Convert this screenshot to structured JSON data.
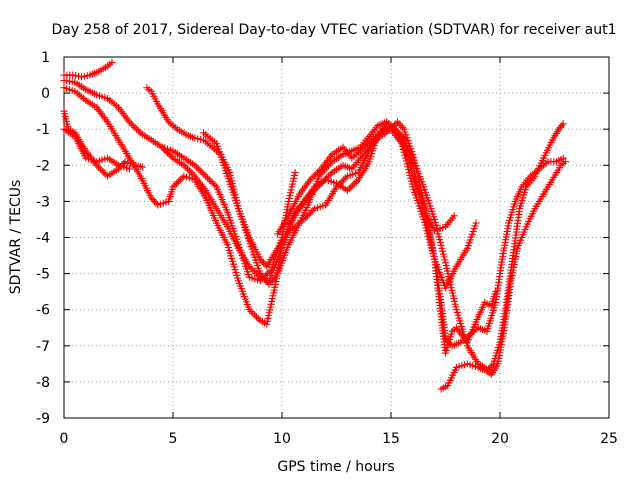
{
  "chart_data": {
    "type": "scatter",
    "title": "Day 258 of 2017, Sidereal Day-to-day VTEC variation (SDTVAR) for receiver aut1",
    "xlabel": "GPS time / hours",
    "ylabel": "SDTVAR / TECUs",
    "xlim": [
      0,
      25
    ],
    "ylim": [
      -9,
      1
    ],
    "xticks": [
      0,
      5,
      10,
      15,
      20,
      25
    ],
    "yticks": [
      -9,
      -8,
      -7,
      -6,
      -5,
      -4,
      -3,
      -2,
      -1,
      0,
      1
    ],
    "grid": true,
    "marker": "plus",
    "color": "#ff0000",
    "series": [
      {
        "name": "trace-1",
        "points": [
          [
            0.0,
            0.5
          ],
          [
            0.4,
            0.5
          ],
          [
            0.8,
            0.45
          ],
          [
            1.2,
            0.5
          ],
          [
            1.6,
            0.6
          ],
          [
            2.0,
            0.75
          ],
          [
            2.2,
            0.85
          ]
        ]
      },
      {
        "name": "trace-2",
        "points": [
          [
            0.0,
            -0.5
          ],
          [
            0.2,
            -1.0
          ],
          [
            0.5,
            -1.1
          ],
          [
            1.0,
            -1.6
          ],
          [
            1.5,
            -2.0
          ],
          [
            2.0,
            -2.3
          ],
          [
            2.5,
            -2.1
          ],
          [
            2.8,
            -1.9
          ],
          [
            3.3,
            -2.0
          ],
          [
            3.6,
            -2.05
          ]
        ]
      },
      {
        "name": "trace-3",
        "points": [
          [
            0.0,
            -1.0
          ],
          [
            0.5,
            -1.2
          ],
          [
            1.0,
            -1.8
          ],
          [
            1.5,
            -1.9
          ],
          [
            2.0,
            -1.8
          ],
          [
            2.5,
            -2.0
          ],
          [
            3.0,
            -2.1
          ]
        ]
      },
      {
        "name": "trace-4",
        "points": [
          [
            0.0,
            0.35
          ],
          [
            0.5,
            0.3
          ],
          [
            1.0,
            0.1
          ],
          [
            1.5,
            -0.05
          ],
          [
            2.0,
            -0.15
          ],
          [
            2.5,
            -0.4
          ],
          [
            3.0,
            -0.8
          ],
          [
            3.5,
            -1.1
          ],
          [
            4.0,
            -1.3
          ],
          [
            4.5,
            -1.5
          ],
          [
            5.0,
            -1.6
          ],
          [
            5.5,
            -1.8
          ],
          [
            6.0,
            -2.0
          ],
          [
            6.5,
            -2.3
          ],
          [
            7.0,
            -2.6
          ],
          [
            7.5,
            -3.3
          ],
          [
            8.0,
            -4.2
          ],
          [
            8.5,
            -5.1
          ],
          [
            9.0,
            -5.2
          ],
          [
            9.5,
            -4.9
          ],
          [
            10.0,
            -4.0
          ],
          [
            10.3,
            -3.0
          ],
          [
            10.6,
            -2.2
          ]
        ]
      },
      {
        "name": "trace-5",
        "points": [
          [
            0.0,
            0.15
          ],
          [
            0.5,
            0.05
          ],
          [
            1.0,
            -0.2
          ],
          [
            1.5,
            -0.4
          ],
          [
            2.0,
            -0.8
          ],
          [
            2.5,
            -1.3
          ],
          [
            3.0,
            -1.8
          ],
          [
            3.5,
            -2.3
          ],
          [
            4.0,
            -2.9
          ],
          [
            4.3,
            -3.1
          ],
          [
            4.8,
            -3.0
          ],
          [
            5.0,
            -2.6
          ],
          [
            5.5,
            -2.3
          ],
          [
            6.0,
            -2.4
          ],
          [
            6.5,
            -2.9
          ],
          [
            7.0,
            -3.6
          ],
          [
            7.5,
            -4.2
          ],
          [
            8.0,
            -5.2
          ],
          [
            8.5,
            -6.0
          ],
          [
            9.0,
            -6.3
          ],
          [
            9.3,
            -6.4
          ],
          [
            9.7,
            -5.3
          ],
          [
            10.0,
            -4.2
          ],
          [
            10.5,
            -3.4
          ],
          [
            11.0,
            -3.0
          ],
          [
            11.5,
            -2.6
          ],
          [
            12.0,
            -2.4
          ],
          [
            12.5,
            -2.5
          ],
          [
            13.0,
            -2.7
          ],
          [
            13.5,
            -2.4
          ],
          [
            14.0,
            -1.9
          ],
          [
            14.3,
            -1.3
          ],
          [
            14.8,
            -0.8
          ],
          [
            15.2,
            -1.0
          ],
          [
            15.5,
            -1.4
          ],
          [
            16.0,
            -2.0
          ],
          [
            16.3,
            -2.8
          ],
          [
            16.7,
            -3.7
          ],
          [
            17.0,
            -4.6
          ],
          [
            17.3,
            -6.2
          ],
          [
            17.5,
            -7.2
          ],
          [
            17.8,
            -6.6
          ],
          [
            18.0,
            -6.5
          ],
          [
            18.5,
            -6.9
          ],
          [
            19.0,
            -6.2
          ],
          [
            19.3,
            -5.8
          ],
          [
            19.6,
            -5.9
          ],
          [
            19.8,
            -5.5
          ]
        ]
      },
      {
        "name": "trace-6",
        "points": [
          [
            3.8,
            0.15
          ],
          [
            4.0,
            0.05
          ],
          [
            4.3,
            -0.3
          ],
          [
            4.8,
            -0.8
          ],
          [
            5.2,
            -1.0
          ],
          [
            5.6,
            -1.15
          ],
          [
            6.0,
            -1.25
          ],
          [
            6.4,
            -1.3
          ],
          [
            6.8,
            -1.5
          ],
          [
            7.2,
            -1.7
          ],
          [
            7.6,
            -2.2
          ],
          [
            8.0,
            -3.2
          ],
          [
            8.5,
            -4.0
          ],
          [
            9.0,
            -4.6
          ],
          [
            9.3,
            -4.8
          ],
          [
            9.8,
            -4.3
          ],
          [
            10.4,
            -3.8
          ],
          [
            11.0,
            -3.5
          ],
          [
            11.5,
            -3.2
          ],
          [
            12.0,
            -3.1
          ],
          [
            12.5,
            -2.6
          ],
          [
            13.0,
            -2.3
          ],
          [
            13.5,
            -2.2
          ],
          [
            14.0,
            -1.6
          ],
          [
            14.5,
            -1.1
          ],
          [
            15.0,
            -0.9
          ],
          [
            15.5,
            -1.2
          ],
          [
            16.0,
            -1.8
          ],
          [
            16.5,
            -2.6
          ],
          [
            17.0,
            -3.5
          ],
          [
            17.5,
            -4.7
          ],
          [
            18.0,
            -6.0
          ],
          [
            18.5,
            -7.0
          ],
          [
            19.0,
            -7.5
          ],
          [
            19.3,
            -7.6
          ],
          [
            19.6,
            -7.8
          ],
          [
            19.9,
            -7.5
          ],
          [
            20.2,
            -6.5
          ],
          [
            20.5,
            -5.2
          ],
          [
            20.8,
            -4.3
          ],
          [
            21.2,
            -3.7
          ],
          [
            21.6,
            -3.2
          ],
          [
            22.0,
            -2.8
          ],
          [
            22.4,
            -2.4
          ],
          [
            22.8,
            -2.0
          ],
          [
            23.0,
            -1.9
          ]
        ]
      },
      {
        "name": "trace-7",
        "points": [
          [
            4.5,
            -1.5
          ],
          [
            5.0,
            -1.8
          ],
          [
            5.5,
            -2.0
          ],
          [
            6.0,
            -2.3
          ],
          [
            6.5,
            -2.7
          ],
          [
            7.0,
            -3.2
          ],
          [
            7.5,
            -3.7
          ],
          [
            8.0,
            -4.3
          ],
          [
            8.5,
            -4.8
          ],
          [
            9.0,
            -5.1
          ],
          [
            9.4,
            -5.2
          ],
          [
            9.8,
            -4.6
          ],
          [
            10.3,
            -3.7
          ],
          [
            10.8,
            -3.2
          ],
          [
            11.3,
            -2.8
          ],
          [
            11.8,
            -2.5
          ],
          [
            12.3,
            -2.2
          ],
          [
            12.8,
            -2.0
          ],
          [
            13.2,
            -2.1
          ],
          [
            13.6,
            -1.8
          ],
          [
            14.0,
            -1.5
          ],
          [
            14.5,
            -1.2
          ],
          [
            15.0,
            -1.0
          ],
          [
            15.5,
            -1.4
          ],
          [
            16.0,
            -2.6
          ],
          [
            16.5,
            -3.5
          ],
          [
            17.0,
            -4.6
          ],
          [
            17.3,
            -5.8
          ],
          [
            17.5,
            -6.8
          ],
          [
            17.8,
            -7.0
          ],
          [
            18.2,
            -6.9
          ],
          [
            18.6,
            -6.7
          ],
          [
            19.0,
            -6.5
          ],
          [
            19.4,
            -6.6
          ],
          [
            19.8,
            -5.8
          ],
          [
            20.1,
            -4.6
          ],
          [
            20.4,
            -3.6
          ],
          [
            20.7,
            -3.0
          ],
          [
            21.0,
            -2.6
          ],
          [
            21.4,
            -2.3
          ],
          [
            21.8,
            -2.1
          ],
          [
            22.2,
            -1.9
          ],
          [
            22.6,
            -1.9
          ],
          [
            22.9,
            -1.8
          ]
        ]
      },
      {
        "name": "trace-8",
        "points": [
          [
            6.4,
            -1.1
          ],
          [
            7.0,
            -1.4
          ],
          [
            7.5,
            -2.3
          ],
          [
            8.0,
            -3.2
          ],
          [
            8.5,
            -4.1
          ],
          [
            9.0,
            -5.0
          ],
          [
            9.4,
            -5.3
          ],
          [
            9.8,
            -5.0
          ],
          [
            10.3,
            -4.2
          ],
          [
            10.8,
            -3.6
          ],
          [
            11.2,
            -3.1
          ],
          [
            11.7,
            -2.3
          ],
          [
            12.3,
            -1.9
          ],
          [
            12.8,
            -1.7
          ],
          [
            13.2,
            -1.6
          ],
          [
            13.6,
            -1.5
          ],
          [
            14.0,
            -1.2
          ],
          [
            14.4,
            -0.9
          ],
          [
            14.8,
            -0.8
          ],
          [
            15.2,
            -1.0
          ],
          [
            15.6,
            -1.3
          ],
          [
            16.0,
            -2.3
          ],
          [
            16.5,
            -3.2
          ],
          [
            17.0,
            -3.8
          ],
          [
            17.5,
            -3.7
          ],
          [
            17.9,
            -3.4
          ]
        ]
      },
      {
        "name": "trace-9",
        "points": [
          [
            9.8,
            -3.9
          ],
          [
            10.3,
            -3.4
          ],
          [
            10.8,
            -2.8
          ],
          [
            11.3,
            -2.4
          ],
          [
            11.8,
            -2.1
          ],
          [
            12.3,
            -1.7
          ],
          [
            12.8,
            -1.5
          ],
          [
            13.2,
            -1.8
          ],
          [
            13.6,
            -1.6
          ],
          [
            14.1,
            -1.3
          ],
          [
            14.5,
            -1.1
          ],
          [
            15.0,
            -1.0
          ],
          [
            15.3,
            -0.8
          ],
          [
            15.6,
            -1.0
          ],
          [
            16.0,
            -1.7
          ],
          [
            16.5,
            -3.0
          ],
          [
            17.0,
            -4.6
          ],
          [
            17.5,
            -5.4
          ],
          [
            18.0,
            -4.8
          ],
          [
            18.5,
            -4.3
          ],
          [
            18.9,
            -3.6
          ]
        ]
      },
      {
        "name": "trace-10",
        "points": [
          [
            17.3,
            -8.2
          ],
          [
            17.6,
            -8.1
          ],
          [
            18.0,
            -7.6
          ],
          [
            18.5,
            -7.5
          ],
          [
            19.0,
            -7.6
          ],
          [
            19.4,
            -7.7
          ],
          [
            19.7,
            -7.5
          ],
          [
            20.0,
            -6.9
          ],
          [
            20.3,
            -5.8
          ],
          [
            20.6,
            -4.5
          ],
          [
            20.9,
            -3.2
          ],
          [
            21.2,
            -2.6
          ],
          [
            21.6,
            -2.3
          ],
          [
            22.0,
            -1.8
          ],
          [
            22.4,
            -1.3
          ],
          [
            22.7,
            -1.0
          ],
          [
            22.9,
            -0.85
          ]
        ]
      }
    ]
  }
}
